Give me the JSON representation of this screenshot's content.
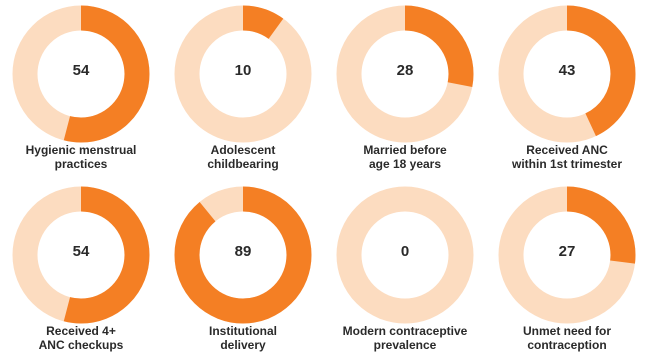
{
  "colors": {
    "filled": "#f47f24",
    "remaining": "#fcdcc0"
  },
  "chart_data": {
    "type": "pie",
    "variant": "donut-grid",
    "max": 100,
    "items": [
      {
        "value": 54,
        "label_lines": [
          "Hygienic menstrual",
          "practices"
        ]
      },
      {
        "value": 10,
        "label_lines": [
          "Adolescent",
          "childbearing"
        ]
      },
      {
        "value": 28,
        "label_lines": [
          "Married before",
          "age 18 years"
        ]
      },
      {
        "value": 43,
        "label_lines": [
          "Received ANC",
          "within 1st trimester"
        ]
      },
      {
        "value": 54,
        "label_lines": [
          "Received 4+",
          "ANC checkups"
        ]
      },
      {
        "value": 89,
        "label_lines": [
          "Institutional",
          "delivery"
        ]
      },
      {
        "value": 0,
        "label_lines": [
          "Modern contraceptive",
          "prevalence"
        ]
      },
      {
        "value": 27,
        "label_lines": [
          "Unmet need for",
          "contraception"
        ]
      }
    ]
  }
}
